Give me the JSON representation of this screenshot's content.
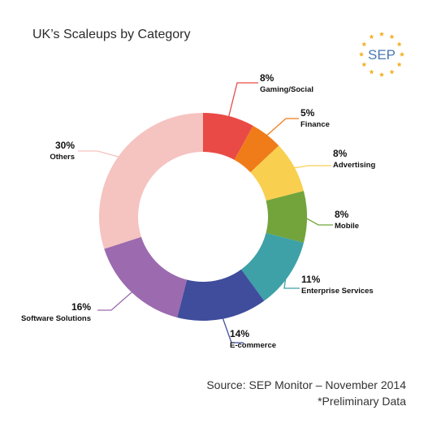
{
  "chart_data": {
    "type": "pie",
    "style": "donut",
    "title": "UK’s Scaleups by Category",
    "slices": [
      {
        "label": "Gaming/Social",
        "value": 8,
        "value_label": "8%",
        "color": "#e94a45"
      },
      {
        "label": "Finance",
        "value": 5,
        "value_label": "5%",
        "color": "#f07c19"
      },
      {
        "label": "Advertising",
        "value": 8,
        "value_label": "8%",
        "color": "#f9cf50"
      },
      {
        "label": "Mobile",
        "value": 8,
        "value_label": "8%",
        "color": "#72a43b"
      },
      {
        "label": "Enterprise Services",
        "value": 11,
        "value_label": "11%",
        "color": "#3da1a7"
      },
      {
        "label": "E-commerce",
        "value": 14,
        "value_label": "14%",
        "color": "#3f4d9c"
      },
      {
        "label": "Software Solutions",
        "value": 16,
        "value_label": "16%",
        "color": "#9c6aae"
      },
      {
        "label": "Others",
        "value": 30,
        "value_label": "30%",
        "color": "#f5c3c0"
      }
    ]
  },
  "logo": {
    "text": "SEP",
    "star_color": "#f3b229",
    "text_color": "#4a78b5"
  },
  "source": {
    "line1": "Source: SEP Monitor – November 2014",
    "line2": "*Preliminary Data"
  }
}
